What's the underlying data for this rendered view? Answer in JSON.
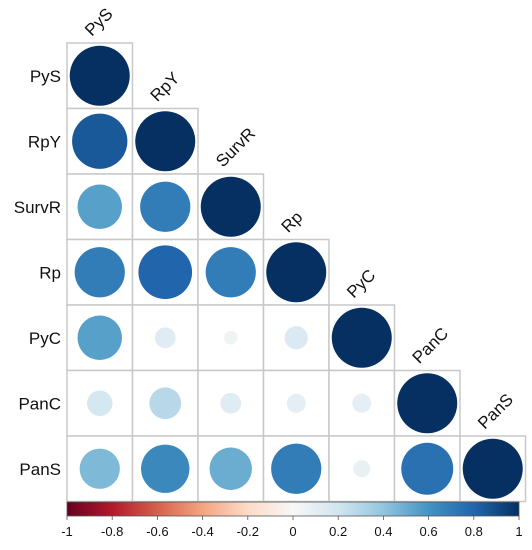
{
  "chart_data": {
    "type": "heatmap",
    "variables": [
      "PyS",
      "RpY",
      "SurvR",
      "Rp",
      "PyC",
      "PanC",
      "PanS"
    ],
    "correlations": [
      [
        1.0
      ],
      [
        0.85,
        1.0
      ],
      [
        0.55,
        0.7,
        1.0
      ],
      [
        0.7,
        0.8,
        0.7,
        1.0
      ],
      [
        0.55,
        0.12,
        0.05,
        0.15,
        1.0
      ],
      [
        0.18,
        0.28,
        0.12,
        0.1,
        0.1,
        1.0
      ],
      [
        0.45,
        0.65,
        0.5,
        0.7,
        0.08,
        0.75,
        1.0
      ]
    ],
    "colorbar": {
      "range": [
        -1,
        1
      ],
      "ticks": [
        "-1",
        "-0.8",
        "-0.6",
        "-0.4",
        "-0.2",
        "0",
        "0.2",
        "0.4",
        "0.6",
        "0.8",
        "1"
      ]
    },
    "grid": true
  },
  "colors": {
    "negative_strong": "#67001f",
    "neutral": "#f7f7f7",
    "positive_strong": "#053061",
    "cell_border": "#c8c8c8"
  }
}
